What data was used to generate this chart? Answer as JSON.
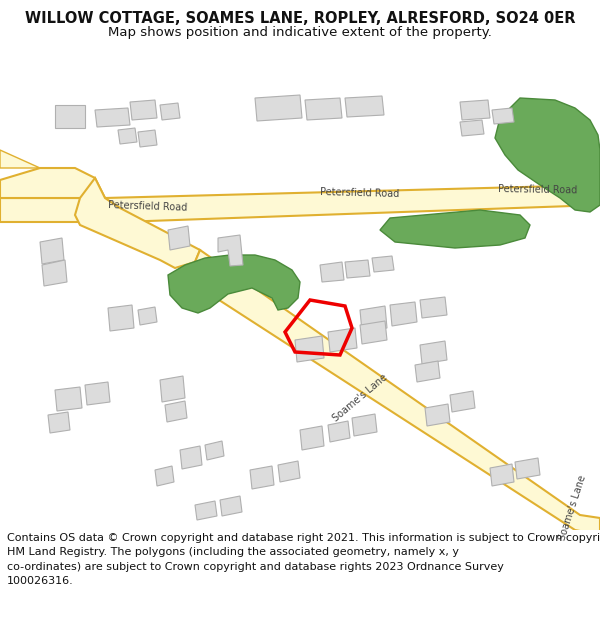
{
  "title": "WILLOW COTTAGE, SOAMES LANE, ROPLEY, ALRESFORD, SO24 0ER",
  "subtitle": "Map shows position and indicative extent of the property.",
  "footer": "Contains OS data © Crown copyright and database right 2021. This information is subject to Crown copyright and database rights 2023 and is reproduced with the permission of\nHM Land Registry. The polygons (including the associated geometry, namely x, y\nco-ordinates) are subject to Crown copyright and database rights 2023 Ordnance Survey\n100026316.",
  "map_bg": "#f0f0f0",
  "road_fill": "#fef9d4",
  "road_stroke": "#e0b030",
  "green_fill": "#6aaa5a",
  "green_stroke": "#4a8a3a",
  "building_fill": "#dcdcdc",
  "building_stroke": "#b0b0b0",
  "red_outline": "#ee0000",
  "title_fontsize": 10.5,
  "subtitle_fontsize": 9.5,
  "footer_fontsize": 8.0
}
